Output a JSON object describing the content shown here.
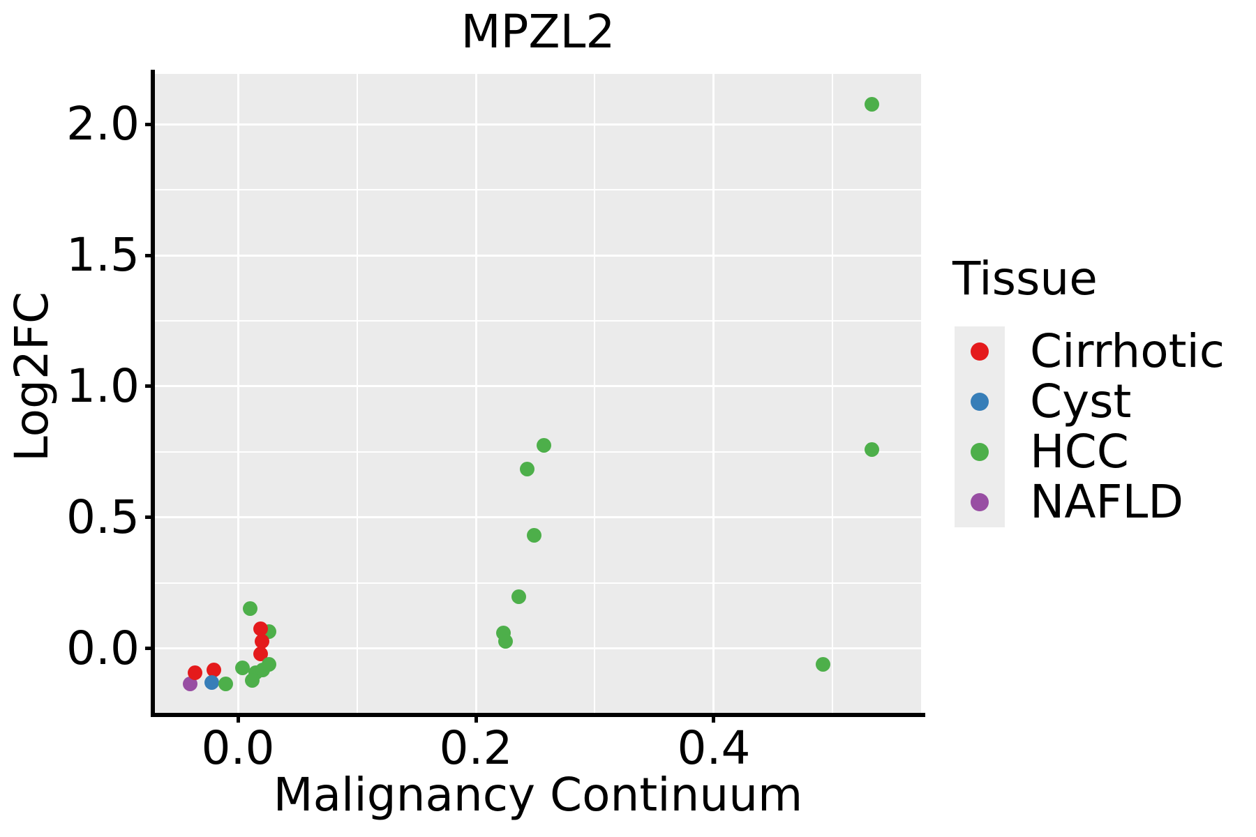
{
  "chart_data": {
    "type": "scatter",
    "title": "MPZL2",
    "xlabel": "Malignancy Continuum",
    "ylabel": "Log2FC",
    "legend_title": "Tissue",
    "legend_position": "right",
    "grid": true,
    "panel_background": "#EBEBEB",
    "gridline_color": "#FFFFFF",
    "legend_key_background": "#ECECEC",
    "axis_color": "#000000",
    "xlim": [
      -0.0698,
      0.5742
    ],
    "ylim": [
      -0.2447,
      2.1915
    ],
    "x_ticks": [
      {
        "v": 0.0,
        "label": "0.0"
      },
      {
        "v": 0.2,
        "label": "0.2"
      },
      {
        "v": 0.4,
        "label": "0.4"
      }
    ],
    "x_minor_gridlines": [
      0.1,
      0.3,
      0.5
    ],
    "y_ticks": [
      {
        "v": 0.0,
        "label": "0.0"
      },
      {
        "v": 0.5,
        "label": "0.5"
      },
      {
        "v": 1.0,
        "label": "1.0"
      },
      {
        "v": 1.5,
        "label": "1.5"
      },
      {
        "v": 2.0,
        "label": "2.0"
      }
    ],
    "y_minor_gridlines": [
      0.25,
      0.75,
      1.25,
      1.75
    ],
    "marker_radius_px": 10.5,
    "legend_marker_radius_px": 13,
    "series": [
      {
        "name": "Cirrhotic",
        "color": "#E41A1C",
        "points": [
          [
            0.019,
            0.077,
            3
          ],
          [
            0.02,
            0.027,
            3
          ],
          [
            0.019,
            -0.021,
            3
          ],
          [
            -0.036,
            -0.093,
            3
          ],
          [
            -0.02,
            -0.08,
            3
          ]
        ]
      },
      {
        "name": "Cyst",
        "color": "#377EB8",
        "points": [
          [
            -0.022,
            -0.13,
            4
          ]
        ]
      },
      {
        "name": "HCC",
        "color": "#4DAF4A",
        "points": [
          [
            0.026,
            0.064,
            2
          ],
          [
            0.01,
            0.152,
            5
          ],
          [
            0.004,
            -0.072,
            5
          ],
          [
            0.015,
            -0.093,
            5
          ],
          [
            0.021,
            -0.08,
            5
          ],
          [
            0.026,
            -0.059,
            5
          ],
          [
            0.012,
            -0.12,
            5
          ],
          [
            -0.01,
            -0.133,
            5
          ],
          [
            0.223,
            0.059,
            5
          ],
          [
            0.225,
            0.027,
            5
          ],
          [
            0.236,
            0.199,
            5
          ],
          [
            0.249,
            0.433,
            5
          ],
          [
            0.243,
            0.686,
            5
          ],
          [
            0.257,
            0.774,
            5
          ],
          [
            0.533,
            2.077,
            5
          ],
          [
            0.533,
            0.758,
            5
          ],
          [
            0.492,
            -0.059,
            5
          ]
        ]
      },
      {
        "name": "NAFLD",
        "color": "#984EA3",
        "points": [
          [
            -0.04,
            -0.133,
            1
          ]
        ]
      }
    ]
  }
}
